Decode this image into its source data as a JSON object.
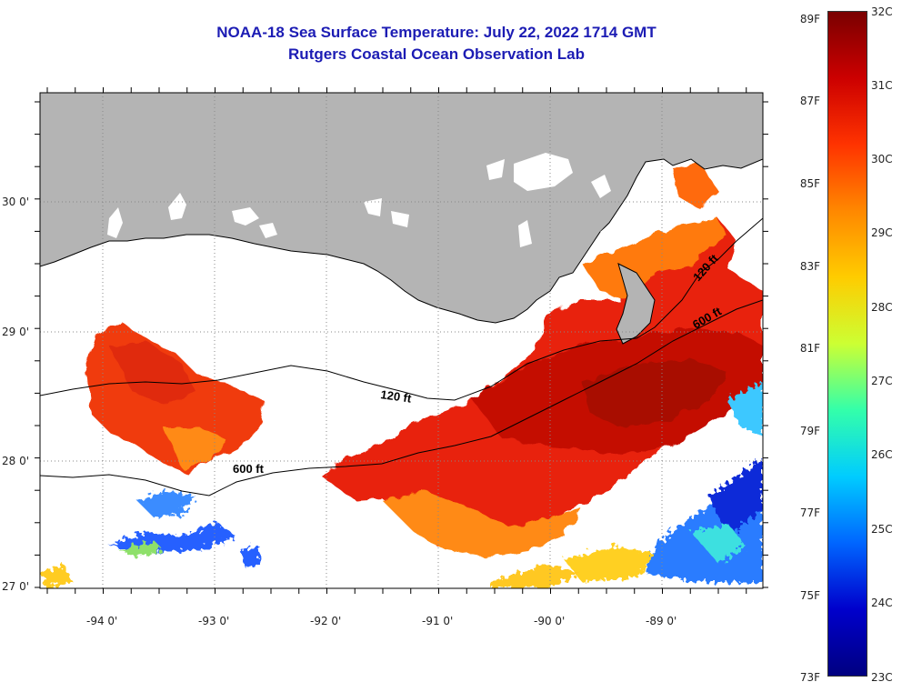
{
  "header": {
    "title": "NOAA-18 Sea Surface Temperature:  July 22, 2022 1714 GMT",
    "subtitle": "Rutgers Coastal Ocean Observation Lab"
  },
  "map": {
    "lon_labels": [
      "-94 0'",
      "-93 0'",
      "-92 0'",
      "-91 0'",
      "-90 0'",
      "-89 0'"
    ],
    "lat_labels": [
      "30 0'",
      "29 0'",
      "28 0'",
      "27 0'"
    ],
    "contour_labels": {
      "c120_west": "120 ft",
      "c600_west": "600 ft",
      "c120_east": "120 ft",
      "c600_east": "600 ft"
    },
    "land_color": "#b4b4b4",
    "cloud_color": "#ffffff"
  },
  "colorbar": {
    "fahrenheit": [
      "89F",
      "87F",
      "85F",
      "83F",
      "81F",
      "79F",
      "77F",
      "75F",
      "73F"
    ],
    "celsius": [
      "32C",
      "31C",
      "30C",
      "29C",
      "28C",
      "27C",
      "26C",
      "25C",
      "24C",
      "23C"
    ],
    "colors": [
      "#7a0000",
      "#cc0000",
      "#ff3300",
      "#ff8800",
      "#ffcc00",
      "#ccff33",
      "#33ffaa",
      "#00ccff",
      "#0066ff",
      "#0000cc",
      "#000080"
    ]
  }
}
